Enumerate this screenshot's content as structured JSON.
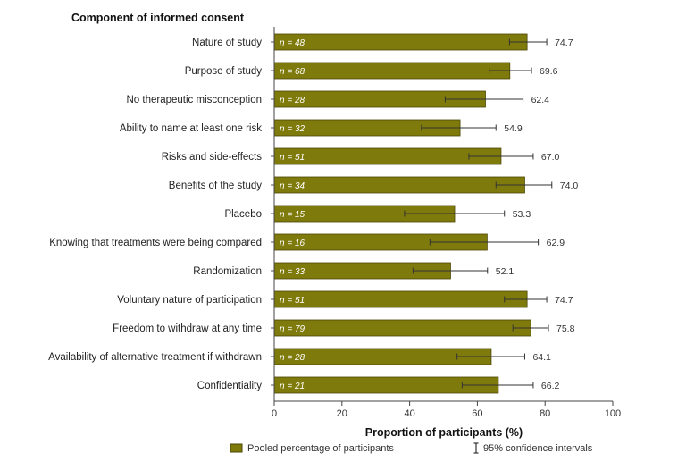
{
  "chart_data": {
    "type": "bar",
    "orientation": "horizontal",
    "header": "Component of informed consent",
    "xlabel": "Proportion of participants (%)",
    "xlim": [
      0,
      100
    ],
    "xticks": [
      "0",
      "20",
      "40",
      "60",
      "80",
      "100"
    ],
    "grid": false,
    "legend": {
      "placement": "bottom",
      "bar_label": "Pooled percentage of participants",
      "ci_label": "95% confidence intervals"
    },
    "colors": {
      "bar": "#7f7a0c",
      "bar_stroke": "#4a4705",
      "errorbar": "#333333"
    },
    "categories": [
      "Nature of study",
      "Purpose of study",
      "No therapeutic misconception",
      "Ability to name at least one risk",
      "Risks and side-effects",
      "Benefits of the study",
      "Placebo",
      "Knowing that treatments were being compared",
      "Randomization",
      "Voluntary nature of participation",
      "Freedom to withdraw at any time",
      "Availability of alternative treatment if withdrawn",
      "Confidentiality"
    ],
    "values": [
      74.7,
      69.6,
      62.4,
      54.9,
      67.0,
      74.0,
      53.3,
      62.9,
      52.1,
      74.7,
      75.8,
      64.1,
      66.2
    ],
    "value_labels": [
      "74.7",
      "69.6",
      "62.4",
      "54.9",
      "67.0",
      "74.0",
      "53.3",
      "62.9",
      "52.1",
      "74.7",
      "75.8",
      "64.1",
      "66.2"
    ],
    "n_labels": [
      "n = 48",
      "n = 68",
      "n = 28",
      "n = 32",
      "n = 51",
      "n = 34",
      "n = 15",
      "n = 16",
      "n = 33",
      "n = 51",
      "n = 79",
      "n = 28",
      "n = 21"
    ],
    "ci_low": [
      69.5,
      63.5,
      50.5,
      43.5,
      57.5,
      65.5,
      38.5,
      46.0,
      41.0,
      68.0,
      70.5,
      54.0,
      55.5
    ],
    "ci_high": [
      80.5,
      76.0,
      73.5,
      65.5,
      76.5,
      82.0,
      68.0,
      78.0,
      63.0,
      80.5,
      81.0,
      74.0,
      76.5
    ]
  }
}
